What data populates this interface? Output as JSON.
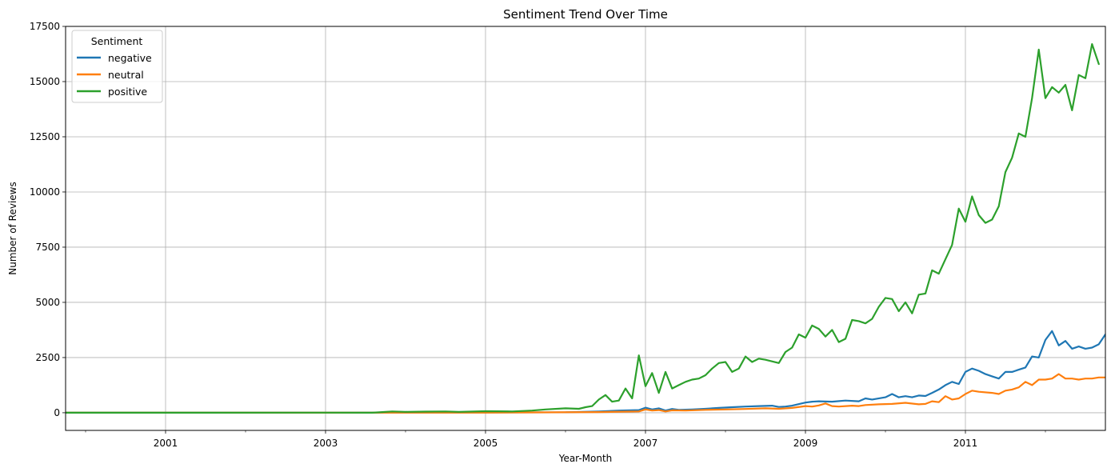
{
  "chart_data": {
    "type": "line",
    "title": "Sentiment Trend Over Time",
    "xlabel": "Year-Month",
    "ylabel": "Number of Reviews",
    "x_start": "1999-10",
    "x_end": "2012-10",
    "xlim": [
      "1999-10",
      "2012-10"
    ],
    "ylim": [
      -800,
      17500
    ],
    "y_ticks": [
      0,
      2500,
      5000,
      7500,
      10000,
      12500,
      15000,
      17500
    ],
    "y_tick_labels": [
      "0",
      "2500",
      "5000",
      "7500",
      "10000",
      "12500",
      "15000",
      "17500"
    ],
    "x_tick_labels": [
      "2001",
      "2003",
      "2005",
      "2007",
      "2009",
      "2011"
    ],
    "x_ticks": [
      "2001-01",
      "2003-01",
      "2005-01",
      "2007-01",
      "2009-01",
      "2011-01"
    ],
    "grid": true,
    "legend": {
      "title": "Sentiment",
      "placement": "top-left"
    },
    "series": [
      {
        "name": "negative",
        "color": "#1f77b4",
        "points": [
          [
            "1999-10",
            0
          ],
          [
            "2003-01",
            0
          ],
          [
            "2005-01",
            10
          ],
          [
            "2006-01",
            20
          ],
          [
            "2006-06",
            60
          ],
          [
            "2006-09",
            100
          ],
          [
            "2006-12",
            120
          ],
          [
            "2007-01",
            230
          ],
          [
            "2007-02",
            150
          ],
          [
            "2007-03",
            200
          ],
          [
            "2007-04",
            100
          ],
          [
            "2007-05",
            170
          ],
          [
            "2007-06",
            130
          ],
          [
            "2007-08",
            150
          ],
          [
            "2007-10",
            180
          ],
          [
            "2007-12",
            220
          ],
          [
            "2008-02",
            250
          ],
          [
            "2008-04",
            280
          ],
          [
            "2008-06",
            300
          ],
          [
            "2008-08",
            320
          ],
          [
            "2008-09",
            260
          ],
          [
            "2008-10",
            280
          ],
          [
            "2008-11",
            320
          ],
          [
            "2009-01",
            460
          ],
          [
            "2009-02",
            500
          ],
          [
            "2009-03",
            520
          ],
          [
            "2009-05",
            500
          ],
          [
            "2009-07",
            550
          ],
          [
            "2009-09",
            520
          ],
          [
            "2009-10",
            650
          ],
          [
            "2009-11",
            600
          ],
          [
            "2010-01",
            700
          ],
          [
            "2010-02",
            850
          ],
          [
            "2010-03",
            700
          ],
          [
            "2010-04",
            750
          ],
          [
            "2010-05",
            700
          ],
          [
            "2010-06",
            780
          ],
          [
            "2010-07",
            760
          ],
          [
            "2010-08",
            900
          ],
          [
            "2010-09",
            1050
          ],
          [
            "2010-10",
            1250
          ],
          [
            "2010-11",
            1400
          ],
          [
            "2010-12",
            1300
          ],
          [
            "2011-01",
            1850
          ],
          [
            "2011-02",
            2000
          ],
          [
            "2011-03",
            1900
          ],
          [
            "2011-04",
            1750
          ],
          [
            "2011-05",
            1650
          ],
          [
            "2011-06",
            1550
          ],
          [
            "2011-07",
            1850
          ],
          [
            "2011-08",
            1850
          ],
          [
            "2011-09",
            1950
          ],
          [
            "2011-10",
            2050
          ],
          [
            "2011-11",
            2550
          ],
          [
            "2011-12",
            2500
          ],
          [
            "2012-01",
            3300
          ],
          [
            "2012-02",
            3700
          ],
          [
            "2012-03",
            3050
          ],
          [
            "2012-04",
            3250
          ],
          [
            "2012-05",
            2900
          ],
          [
            "2012-06",
            3000
          ],
          [
            "2012-07",
            2900
          ],
          [
            "2012-08",
            2950
          ],
          [
            "2012-09",
            3100
          ],
          [
            "2012-10",
            3550
          ],
          [
            "2012-11",
            3050
          ]
        ]
      },
      {
        "name": "neutral",
        "color": "#ff7f0e",
        "points": [
          [
            "1999-10",
            0
          ],
          [
            "2005-01",
            5
          ],
          [
            "2006-06",
            30
          ],
          [
            "2006-12",
            60
          ],
          [
            "2007-01",
            150
          ],
          [
            "2007-02",
            100
          ],
          [
            "2007-03",
            120
          ],
          [
            "2007-04",
            60
          ],
          [
            "2007-05",
            110
          ],
          [
            "2007-07",
            100
          ],
          [
            "2007-10",
            130
          ],
          [
            "2008-01",
            150
          ],
          [
            "2008-04",
            170
          ],
          [
            "2008-07",
            200
          ],
          [
            "2008-09",
            180
          ],
          [
            "2008-11",
            220
          ],
          [
            "2009-01",
            300
          ],
          [
            "2009-02",
            280
          ],
          [
            "2009-03",
            330
          ],
          [
            "2009-04",
            420
          ],
          [
            "2009-05",
            300
          ],
          [
            "2009-06",
            280
          ],
          [
            "2009-08",
            320
          ],
          [
            "2009-09",
            300
          ],
          [
            "2009-10",
            350
          ],
          [
            "2009-12",
            380
          ],
          [
            "2010-02",
            400
          ],
          [
            "2010-04",
            450
          ],
          [
            "2010-06",
            380
          ],
          [
            "2010-07",
            400
          ],
          [
            "2010-08",
            520
          ],
          [
            "2010-09",
            480
          ],
          [
            "2010-10",
            750
          ],
          [
            "2010-11",
            600
          ],
          [
            "2010-12",
            650
          ],
          [
            "2011-01",
            850
          ],
          [
            "2011-02",
            1000
          ],
          [
            "2011-03",
            950
          ],
          [
            "2011-05",
            900
          ],
          [
            "2011-06",
            850
          ],
          [
            "2011-07",
            1000
          ],
          [
            "2011-08",
            1050
          ],
          [
            "2011-09",
            1150
          ],
          [
            "2011-10",
            1400
          ],
          [
            "2011-11",
            1250
          ],
          [
            "2011-12",
            1500
          ],
          [
            "2012-01",
            1500
          ],
          [
            "2012-02",
            1550
          ],
          [
            "2012-03",
            1750
          ],
          [
            "2012-04",
            1550
          ],
          [
            "2012-05",
            1550
          ],
          [
            "2012-06",
            1500
          ],
          [
            "2012-07",
            1550
          ],
          [
            "2012-08",
            1550
          ],
          [
            "2012-09",
            1600
          ],
          [
            "2012-10",
            1600
          ],
          [
            "2012-11",
            1450
          ]
        ]
      },
      {
        "name": "positive",
        "color": "#2ca02c",
        "points": [
          [
            "1999-10",
            0
          ],
          [
            "2001-01",
            0
          ],
          [
            "2003-01",
            5
          ],
          [
            "2003-08",
            0
          ],
          [
            "2003-11",
            60
          ],
          [
            "2004-01",
            40
          ],
          [
            "2004-04",
            50
          ],
          [
            "2004-07",
            60
          ],
          [
            "2004-09",
            40
          ],
          [
            "2005-01",
            70
          ],
          [
            "2005-05",
            60
          ],
          [
            "2005-08",
            100
          ],
          [
            "2005-10",
            150
          ],
          [
            "2006-01",
            200
          ],
          [
            "2006-03",
            180
          ],
          [
            "2006-04",
            250
          ],
          [
            "2006-05",
            300
          ],
          [
            "2006-06",
            600
          ],
          [
            "2006-07",
            800
          ],
          [
            "2006-08",
            500
          ],
          [
            "2006-09",
            550
          ],
          [
            "2006-10",
            1100
          ],
          [
            "2006-11",
            650
          ],
          [
            "2006-12",
            2600
          ],
          [
            "2007-01",
            1200
          ],
          [
            "2007-02",
            1800
          ],
          [
            "2007-03",
            900
          ],
          [
            "2007-04",
            1850
          ],
          [
            "2007-05",
            1100
          ],
          [
            "2007-06",
            1250
          ],
          [
            "2007-07",
            1400
          ],
          [
            "2007-08",
            1500
          ],
          [
            "2007-09",
            1550
          ],
          [
            "2007-10",
            1700
          ],
          [
            "2007-11",
            2000
          ],
          [
            "2007-12",
            2250
          ],
          [
            "2008-01",
            2300
          ],
          [
            "2008-02",
            1850
          ],
          [
            "2008-03",
            2000
          ],
          [
            "2008-04",
            2550
          ],
          [
            "2008-05",
            2300
          ],
          [
            "2008-06",
            2450
          ],
          [
            "2008-07",
            2400
          ],
          [
            "2008-09",
            2250
          ],
          [
            "2008-10",
            2750
          ],
          [
            "2008-11",
            2950
          ],
          [
            "2008-12",
            3550
          ],
          [
            "2009-01",
            3400
          ],
          [
            "2009-02",
            3950
          ],
          [
            "2009-03",
            3800
          ],
          [
            "2009-04",
            3450
          ],
          [
            "2009-05",
            3750
          ],
          [
            "2009-06",
            3200
          ],
          [
            "2009-07",
            3350
          ],
          [
            "2009-08",
            4200
          ],
          [
            "2009-09",
            4150
          ],
          [
            "2009-10",
            4050
          ],
          [
            "2009-11",
            4250
          ],
          [
            "2009-12",
            4800
          ],
          [
            "2010-01",
            5200
          ],
          [
            "2010-02",
            5150
          ],
          [
            "2010-03",
            4600
          ],
          [
            "2010-04",
            5000
          ],
          [
            "2010-05",
            4500
          ],
          [
            "2010-06",
            5350
          ],
          [
            "2010-07",
            5400
          ],
          [
            "2010-08",
            6450
          ],
          [
            "2010-09",
            6300
          ],
          [
            "2010-10",
            6950
          ],
          [
            "2010-11",
            7600
          ],
          [
            "2010-12",
            9250
          ],
          [
            "2011-01",
            8650
          ],
          [
            "2011-02",
            9800
          ],
          [
            "2011-03",
            8950
          ],
          [
            "2011-04",
            8600
          ],
          [
            "2011-05",
            8750
          ],
          [
            "2011-06",
            9350
          ],
          [
            "2011-07",
            10900
          ],
          [
            "2011-08",
            11550
          ],
          [
            "2011-09",
            12650
          ],
          [
            "2011-10",
            12500
          ],
          [
            "2011-11",
            14250
          ],
          [
            "2011-12",
            16450
          ],
          [
            "2012-01",
            14250
          ],
          [
            "2012-02",
            14750
          ],
          [
            "2012-03",
            14500
          ],
          [
            "2012-04",
            14850
          ],
          [
            "2012-05",
            13700
          ],
          [
            "2012-06",
            15300
          ],
          [
            "2012-07",
            15150
          ],
          [
            "2012-08",
            16700
          ],
          [
            "2012-09",
            15800
          ]
        ]
      }
    ]
  }
}
